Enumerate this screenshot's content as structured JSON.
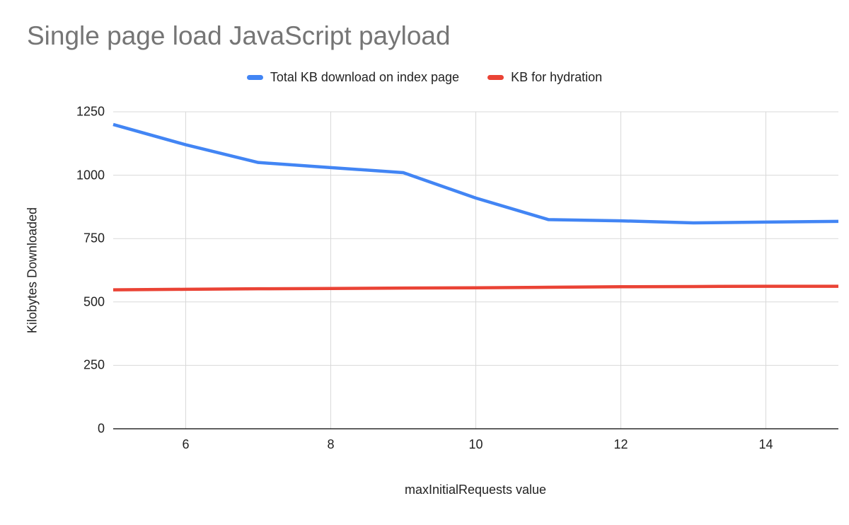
{
  "chart_data": {
    "type": "line",
    "title": "Single page load JavaScript payload",
    "xlabel": "maxInitialRequests value",
    "ylabel": "Kilobytes Downloaded",
    "x": [
      5,
      6,
      7,
      8,
      9,
      10,
      11,
      12,
      13,
      14,
      15
    ],
    "series": [
      {
        "name": "Total KB download on index page",
        "color": "#4285f4",
        "values": [
          1200,
          1120,
          1050,
          1030,
          1010,
          910,
          825,
          820,
          812,
          815,
          818
        ]
      },
      {
        "name": "KB for hydration",
        "color": "#ea4335",
        "values": [
          548,
          550,
          552,
          553,
          555,
          556,
          558,
          560,
          561,
          562,
          562
        ]
      }
    ],
    "xlim": [
      5,
      15
    ],
    "ylim": [
      0,
      1250
    ],
    "xticks": [
      6,
      8,
      10,
      12,
      14
    ],
    "yticks": [
      0,
      250,
      500,
      750,
      1000,
      1250
    ],
    "grid": true,
    "legend_position": "top",
    "colors": {
      "grid": "#d9d9d9",
      "axis": "#000000",
      "title": "#757575",
      "text": "#222222",
      "background": "#ffffff"
    }
  }
}
